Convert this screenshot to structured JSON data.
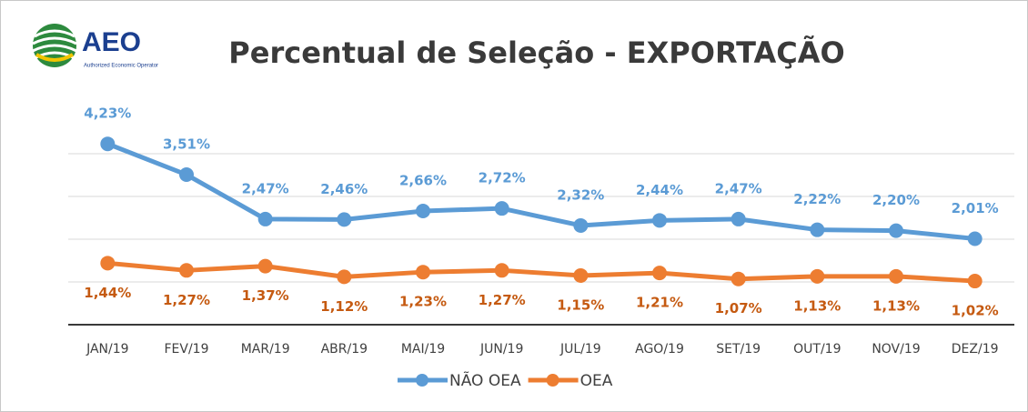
{
  "logo": {
    "text": "AEO",
    "subtitle": "Authorized Economic Operator"
  },
  "chart_data": {
    "type": "line",
    "title": "Percentual de Seleção - EXPORTAÇÃO",
    "categories": [
      "JAN/19",
      "FEV/19",
      "MAR/19",
      "ABR/19",
      "MAI/19",
      "JUN/19",
      "JUL/19",
      "AGO/19",
      "SET/19",
      "OUT/19",
      "NOV/19",
      "DEZ/19"
    ],
    "series": [
      {
        "name": "NÃO OEA",
        "color": "#5b9bd5",
        "label_color": "#5b9bd5",
        "label_position": "above",
        "values": [
          4.23,
          3.51,
          2.47,
          2.46,
          2.66,
          2.72,
          2.32,
          2.44,
          2.47,
          2.22,
          2.2,
          2.01
        ],
        "value_labels": [
          "4,23%",
          "3,51%",
          "2,47%",
          "2,46%",
          "2,66%",
          "2,72%",
          "2,32%",
          "2,44%",
          "2,47%",
          "2,22%",
          "2,20%",
          "2,01%"
        ]
      },
      {
        "name": "OEA",
        "color": "#ed7d31",
        "label_color": "#c55a11",
        "label_position": "below",
        "values": [
          1.44,
          1.27,
          1.37,
          1.12,
          1.23,
          1.27,
          1.15,
          1.21,
          1.07,
          1.13,
          1.13,
          1.02
        ],
        "value_labels": [
          "1,44%",
          "1,27%",
          "1,37%",
          "1,12%",
          "1,23%",
          "1,27%",
          "1,15%",
          "1,21%",
          "1,07%",
          "1,13%",
          "1,13%",
          "1,02%"
        ]
      }
    ],
    "ylim": [
      0,
      5
    ],
    "yticks": [
      0,
      1,
      2,
      3,
      4
    ],
    "grid": true,
    "legend": "bottom"
  }
}
